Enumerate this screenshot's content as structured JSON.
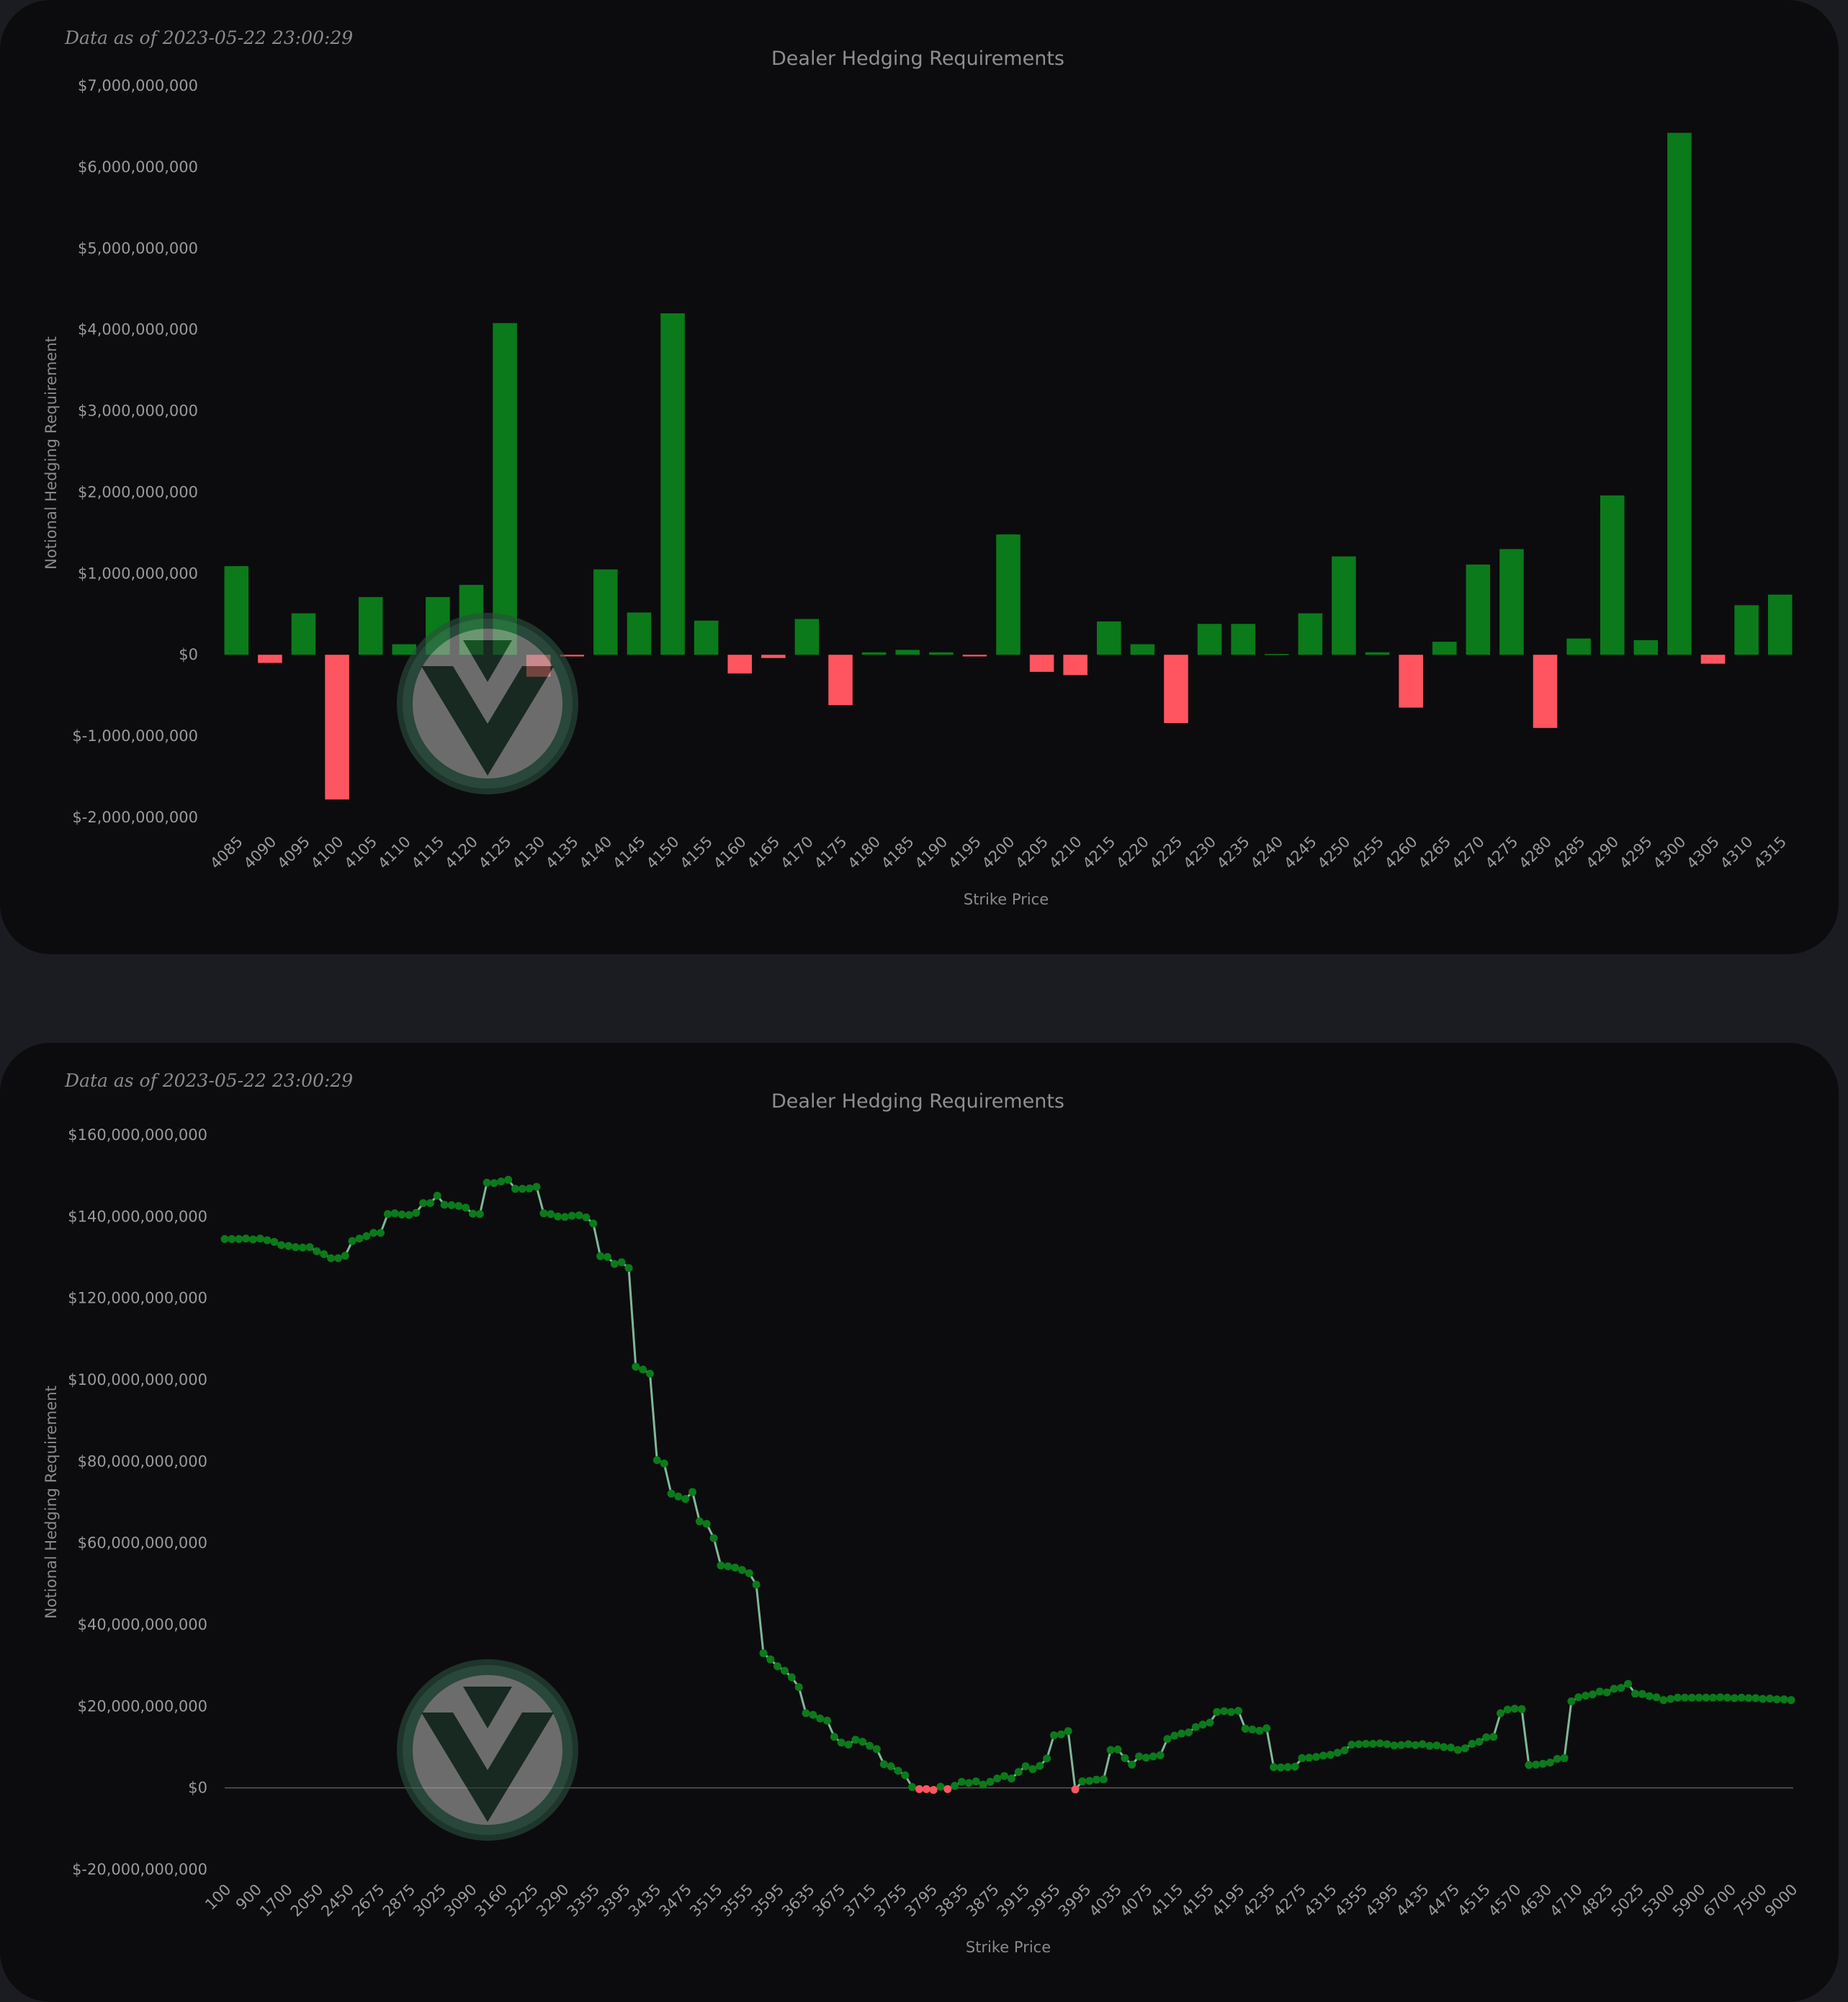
{
  "colors": {
    "page_background": "#1b1b22",
    "panel_background": "#0c0c0e",
    "positive": "#0b7a1a",
    "negative": "#ff5560",
    "line": "#7fb89a",
    "text": "#8e8e8e"
  },
  "watermark_icon": "v-circle-logo",
  "chart_data": [
    {
      "type": "bar",
      "timestamp": "Data as of 2023-05-22 23:00:29",
      "title": "Dealer Hedging Requirements",
      "xlabel": "Strike Price",
      "ylabel": "Notional Hedging Requirement",
      "ylim": [
        -2000000000,
        7000000000
      ],
      "y_ticks": [
        7000000000,
        6000000000,
        5000000000,
        4000000000,
        3000000000,
        2000000000,
        1000000000,
        0,
        -1000000000,
        -2000000000
      ],
      "y_tick_labels": [
        "$7,000,000,000",
        "$6,000,000,000",
        "$5,000,000,000",
        "$4,000,000,000",
        "$3,000,000,000",
        "$2,000,000,000",
        "$1,000,000,000",
        "$0",
        "$-1,000,000,000",
        "$-2,000,000,000"
      ],
      "categories": [
        "4085",
        "4090",
        "4095",
        "4100",
        "4105",
        "4110",
        "4115",
        "4120",
        "4125",
        "4130",
        "4135",
        "4140",
        "4145",
        "4150",
        "4155",
        "4160",
        "4165",
        "4170",
        "4175",
        "4180",
        "4185",
        "4190",
        "4195",
        "4200",
        "4205",
        "4210",
        "4215",
        "4220",
        "4225",
        "4230",
        "4235",
        "4240",
        "4245",
        "4250",
        "4255",
        "4260",
        "4265",
        "4270",
        "4275",
        "4280",
        "4285",
        "4290",
        "4295",
        "4300",
        "4305",
        "4310",
        "4315"
      ],
      "values": [
        1090000000,
        -100000000,
        510000000,
        -1780000000,
        710000000,
        130000000,
        710000000,
        860000000,
        4080000000,
        -270000000,
        -20000000,
        1050000000,
        520000000,
        4200000000,
        420000000,
        -230000000,
        -40000000,
        440000000,
        -620000000,
        30000000,
        60000000,
        30000000,
        -20000000,
        1480000000,
        -210000000,
        -250000000,
        410000000,
        130000000,
        -840000000,
        380000000,
        380000000,
        10000000,
        510000000,
        1210000000,
        30000000,
        -650000000,
        160000000,
        1110000000,
        1300000000,
        -900000000,
        200000000,
        1960000000,
        180000000,
        6420000000,
        -110000000,
        610000000,
        740000000
      ],
      "grid": false
    },
    {
      "type": "line",
      "timestamp": "Data as of 2023-05-22 23:00:29",
      "title": "Dealer Hedging Requirements",
      "xlabel": "Strike Price",
      "ylabel": "Notional Hedging Requirement",
      "ylim": [
        -20000000000,
        160000000000
      ],
      "y_ticks": [
        160000000000,
        140000000000,
        120000000000,
        100000000000,
        80000000000,
        60000000000,
        40000000000,
        20000000000,
        0,
        -20000000000
      ],
      "y_tick_labels": [
        "$160,000,000,000",
        "$140,000,000,000",
        "$120,000,000,000",
        "$100,000,000,000",
        "$80,000,000,000",
        "$60,000,000,000",
        "$40,000,000,000",
        "$20,000,000,000",
        "$0",
        "$-20,000,000,000"
      ],
      "x_tick_labels": [
        "100",
        "900",
        "1700",
        "2050",
        "2450",
        "2675",
        "2875",
        "3025",
        "3090",
        "3160",
        "3225",
        "3290",
        "3355",
        "3395",
        "3435",
        "3475",
        "3515",
        "3555",
        "3595",
        "3635",
        "3675",
        "3715",
        "3755",
        "3795",
        "3835",
        "3875",
        "3915",
        "3955",
        "3995",
        "4035",
        "4075",
        "4115",
        "4155",
        "4195",
        "4235",
        "4275",
        "4315",
        "4355",
        "4395",
        "4435",
        "4475",
        "4515",
        "4570",
        "4630",
        "4710",
        "4825",
        "5025",
        "5300",
        "5900",
        "6700",
        "7500",
        "9000"
      ],
      "series": [
        {
          "values": [
            134.5,
            134.5,
            134.5,
            134.6,
            134.4,
            134.6,
            134.2,
            133.8,
            133.0,
            132.8,
            132.5,
            132.4,
            132.5,
            131.5,
            130.8,
            129.8,
            129.8,
            130.4,
            134.0,
            134.6,
            135.2,
            136.0,
            136.0,
            140.6,
            140.8,
            140.5,
            140.4,
            140.9,
            143.3,
            143.3,
            145.1,
            142.9,
            142.8,
            142.6,
            142.2,
            140.7,
            140.6,
            148.3,
            148.2,
            148.6,
            149.0,
            146.8,
            146.8,
            146.9,
            147.3,
            140.8,
            140.6,
            140.0,
            139.9,
            140.2,
            140.3,
            139.8,
            138.3,
            130.3,
            130.1,
            128.4,
            128.8,
            127.4,
            103.2,
            102.5,
            101.5,
            80.3,
            79.5,
            72.1,
            71.4,
            70.8,
            72.5,
            65.3,
            64.7,
            61.2,
            54.5,
            54.3,
            54.0,
            53.4,
            52.6,
            49.8,
            33.0,
            31.5,
            29.8,
            28.7,
            27.1,
            24.7,
            18.3,
            17.9,
            17.0,
            16.5,
            12.5,
            11.1,
            10.6,
            11.8,
            11.3,
            10.3,
            9.5,
            5.8,
            5.3,
            4.2,
            3.1,
            0.2,
            -0.3,
            -0.3,
            -0.5,
            0.3,
            -0.3,
            0.5,
            1.5,
            1.2,
            1.6,
            0.8,
            1.5,
            2.3,
            2.9,
            2.3,
            3.9,
            5.3,
            4.6,
            5.4,
            7.2,
            12.9,
            13.1,
            13.9,
            -0.4,
            1.6,
            1.7,
            2.0,
            2.1,
            9.3,
            9.4,
            7.3,
            5.7,
            7.7,
            7.4,
            7.7,
            8.0,
            12.0,
            12.8,
            13.3,
            13.6,
            14.9,
            15.5,
            16.0,
            18.6,
            18.8,
            18.6,
            18.9,
            14.5,
            14.3,
            14.0,
            14.6,
            5.1,
            5.0,
            5.1,
            5.2,
            7.3,
            7.4,
            7.6,
            7.9,
            8.1,
            8.6,
            9.2,
            10.6,
            10.7,
            10.8,
            10.8,
            10.9,
            10.7,
            10.4,
            10.5,
            10.7,
            10.5,
            10.7,
            10.3,
            10.4,
            10.0,
            9.9,
            9.3,
            9.7,
            10.8,
            11.3,
            12.4,
            12.5,
            18.3,
            19.2,
            19.4,
            19.3,
            5.6,
            5.7,
            5.9,
            6.2,
            7.1,
            7.3,
            21.2,
            22.2,
            22.6,
            22.9,
            23.6,
            23.4,
            24.3,
            24.5,
            25.5,
            23.1,
            23.0,
            22.5,
            22.2,
            21.5,
            21.8,
            22.1,
            22.1,
            22.1,
            22.1,
            22.1,
            22.1,
            22.2,
            22.1,
            22.0,
            22.1,
            22.0,
            22.0,
            21.8,
            21.9,
            21.7,
            21.7,
            21.5
          ],
          "values_unit": "billions",
          "points_below_zero_colored": "negative"
        }
      ],
      "zero_line": true,
      "grid": false
    }
  ]
}
